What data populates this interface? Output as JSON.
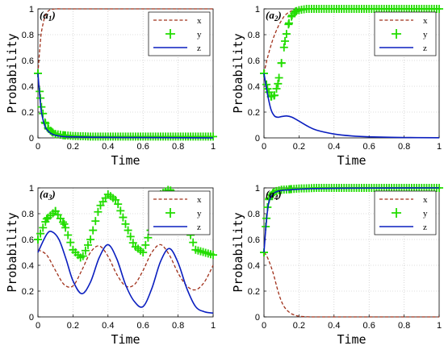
{
  "figure": {
    "colors": {
      "x": "#a0301a",
      "y": "#22dd00",
      "z": "#0a1ebf",
      "axis": "#000000"
    }
  },
  "chart_data": [
    {
      "type": "line",
      "panel_label": "a",
      "panel_sub": "1",
      "xlabel": "Time",
      "ylabel": "Probability",
      "xlim": [
        0,
        1
      ],
      "ylim": [
        0,
        1
      ],
      "xticks": [
        "0",
        "0.2",
        "0.4",
        "0.6",
        "0.8",
        "1"
      ],
      "yticks": [
        "0",
        "0.2",
        "0.4",
        "0.6",
        "0.8",
        "1"
      ],
      "legend_position": "top-right",
      "series": [
        {
          "name": "x",
          "style": "dashed",
          "x": [
            0,
            0.01,
            0.02,
            0.04,
            0.06,
            0.08,
            0.1,
            0.15,
            0.2,
            0.3,
            0.5,
            1.0
          ],
          "y": [
            0.5,
            0.68,
            0.82,
            0.94,
            0.985,
            0.995,
            1.0,
            1.0,
            1.0,
            1.0,
            1.0,
            1.0
          ]
        },
        {
          "name": "y",
          "style": "plus-markers",
          "x": [
            0,
            0.01,
            0.02,
            0.04,
            0.06,
            0.08,
            0.1,
            0.15,
            0.2,
            0.3,
            0.5,
            0.7,
            1.0
          ],
          "y": [
            0.5,
            0.36,
            0.24,
            0.12,
            0.07,
            0.045,
            0.03,
            0.02,
            0.015,
            0.01,
            0.01,
            0.01,
            0.01
          ]
        },
        {
          "name": "z",
          "style": "solid",
          "x": [
            0,
            0.01,
            0.02,
            0.04,
            0.06,
            0.08,
            0.1,
            0.15,
            0.2,
            0.3,
            0.5,
            0.7,
            1.0
          ],
          "y": [
            0.5,
            0.33,
            0.2,
            0.09,
            0.05,
            0.03,
            0.02,
            0.01,
            0.008,
            0.005,
            0.003,
            0.002,
            0.0
          ]
        }
      ]
    },
    {
      "type": "line",
      "panel_label": "a",
      "panel_sub": "2",
      "xlabel": "Time",
      "ylabel": "Probability",
      "xlim": [
        0,
        1
      ],
      "ylim": [
        0,
        1
      ],
      "xticks": [
        "0",
        "0.2",
        "0.4",
        "0.6",
        "0.8",
        "1"
      ],
      "yticks": [
        "0",
        "0.2",
        "0.4",
        "0.6",
        "0.8",
        "1"
      ],
      "legend_position": "top-right",
      "series": [
        {
          "name": "x",
          "style": "dashed",
          "x": [
            0,
            0.02,
            0.05,
            0.08,
            0.1,
            0.12,
            0.15,
            0.18,
            0.2,
            0.25,
            0.3,
            1.0
          ],
          "y": [
            0.5,
            0.62,
            0.76,
            0.86,
            0.91,
            0.95,
            0.98,
            0.99,
            1.0,
            1.0,
            1.0,
            1.0
          ]
        },
        {
          "name": "y",
          "style": "plus-markers",
          "x": [
            0,
            0.02,
            0.04,
            0.06,
            0.08,
            0.1,
            0.12,
            0.14,
            0.16,
            0.18,
            0.2,
            0.24,
            0.3,
            0.4,
            0.6,
            0.8,
            1.0
          ],
          "y": [
            0.5,
            0.38,
            0.32,
            0.33,
            0.42,
            0.58,
            0.75,
            0.88,
            0.95,
            0.98,
            0.99,
            1.0,
            1.0,
            1.0,
            1.0,
            1.0,
            1.0
          ]
        },
        {
          "name": "z",
          "style": "solid",
          "x": [
            0,
            0.02,
            0.04,
            0.06,
            0.08,
            0.1,
            0.13,
            0.16,
            0.2,
            0.25,
            0.3,
            0.4,
            0.5,
            0.6,
            0.8,
            1.0
          ],
          "y": [
            0.5,
            0.34,
            0.22,
            0.17,
            0.16,
            0.165,
            0.17,
            0.16,
            0.13,
            0.09,
            0.06,
            0.03,
            0.015,
            0.008,
            0.003,
            0.001
          ]
        }
      ]
    },
    {
      "type": "line",
      "panel_label": "a",
      "panel_sub": "3",
      "xlabel": "Time",
      "ylabel": "Probability",
      "xlim": [
        0,
        1
      ],
      "ylim": [
        0,
        1
      ],
      "xticks": [
        "0",
        "0.2",
        "0.4",
        "0.6",
        "0.8",
        "1"
      ],
      "yticks": [
        "0",
        "0.2",
        "0.4",
        "0.6",
        "0.8",
        "1"
      ],
      "legend_position": "top-right",
      "series": [
        {
          "name": "x",
          "style": "dashed",
          "x": [
            0,
            0.05,
            0.1,
            0.15,
            0.2,
            0.25,
            0.3,
            0.35,
            0.4,
            0.45,
            0.5,
            0.55,
            0.6,
            0.65,
            0.7,
            0.75,
            0.8,
            0.85,
            0.9,
            0.95,
            1.0
          ],
          "y": [
            0.52,
            0.48,
            0.36,
            0.25,
            0.24,
            0.36,
            0.5,
            0.55,
            0.47,
            0.33,
            0.24,
            0.25,
            0.36,
            0.5,
            0.56,
            0.48,
            0.34,
            0.24,
            0.21,
            0.27,
            0.4
          ]
        },
        {
          "name": "y",
          "style": "plus-markers",
          "x": [
            0,
            0.05,
            0.1,
            0.15,
            0.2,
            0.25,
            0.3,
            0.35,
            0.4,
            0.45,
            0.5,
            0.55,
            0.6,
            0.65,
            0.7,
            0.75,
            0.8,
            0.85,
            0.9,
            0.95,
            1.0
          ],
          "y": [
            0.6,
            0.76,
            0.82,
            0.72,
            0.52,
            0.45,
            0.6,
            0.85,
            0.95,
            0.9,
            0.72,
            0.55,
            0.5,
            0.7,
            0.95,
            0.99,
            0.92,
            0.72,
            0.52,
            0.5,
            0.48
          ]
        },
        {
          "name": "z",
          "style": "solid",
          "x": [
            0,
            0.05,
            0.08,
            0.12,
            0.16,
            0.2,
            0.25,
            0.3,
            0.35,
            0.4,
            0.45,
            0.5,
            0.55,
            0.6,
            0.65,
            0.7,
            0.75,
            0.8,
            0.85,
            0.9,
            0.95,
            1.0
          ],
          "y": [
            0.5,
            0.64,
            0.66,
            0.6,
            0.45,
            0.28,
            0.18,
            0.27,
            0.46,
            0.56,
            0.45,
            0.25,
            0.12,
            0.08,
            0.22,
            0.43,
            0.53,
            0.42,
            0.22,
            0.08,
            0.04,
            0.03
          ]
        }
      ]
    },
    {
      "type": "line",
      "panel_label": "a",
      "panel_sub": "4",
      "xlabel": "Time",
      "ylabel": "Probability",
      "xlim": [
        0,
        1
      ],
      "ylim": [
        0,
        1
      ],
      "xticks": [
        "0",
        "0.2",
        "0.4",
        "0.6",
        "0.8",
        "1"
      ],
      "yticks": [
        "0",
        "0.2",
        "0.4",
        "0.6",
        "0.8",
        "1"
      ],
      "legend_position": "top-right",
      "series": [
        {
          "name": "x",
          "style": "dashed",
          "x": [
            0,
            0.02,
            0.05,
            0.08,
            0.1,
            0.12,
            0.15,
            0.18,
            0.2,
            0.25,
            0.3,
            0.5,
            1.0
          ],
          "y": [
            0.5,
            0.46,
            0.35,
            0.2,
            0.12,
            0.07,
            0.03,
            0.012,
            0.005,
            0.001,
            0.0,
            0.0,
            0.0
          ]
        },
        {
          "name": "y",
          "style": "plus-markers",
          "x": [
            0,
            0.01,
            0.02,
            0.03,
            0.05,
            0.07,
            0.1,
            0.15,
            0.2,
            0.3,
            0.5,
            0.7,
            1.0
          ],
          "y": [
            0.5,
            0.7,
            0.85,
            0.92,
            0.96,
            0.975,
            0.985,
            0.99,
            0.995,
            1.0,
            1.0,
            1.0,
            1.0
          ]
        },
        {
          "name": "z",
          "style": "solid",
          "x": [
            0,
            0.01,
            0.02,
            0.03,
            0.05,
            0.07,
            0.1,
            0.15,
            0.2,
            0.3,
            0.5,
            0.7,
            1.0
          ],
          "y": [
            0.5,
            0.68,
            0.82,
            0.9,
            0.95,
            0.97,
            0.98,
            0.985,
            0.99,
            0.995,
            0.998,
            0.999,
            1.0
          ]
        }
      ]
    }
  ]
}
